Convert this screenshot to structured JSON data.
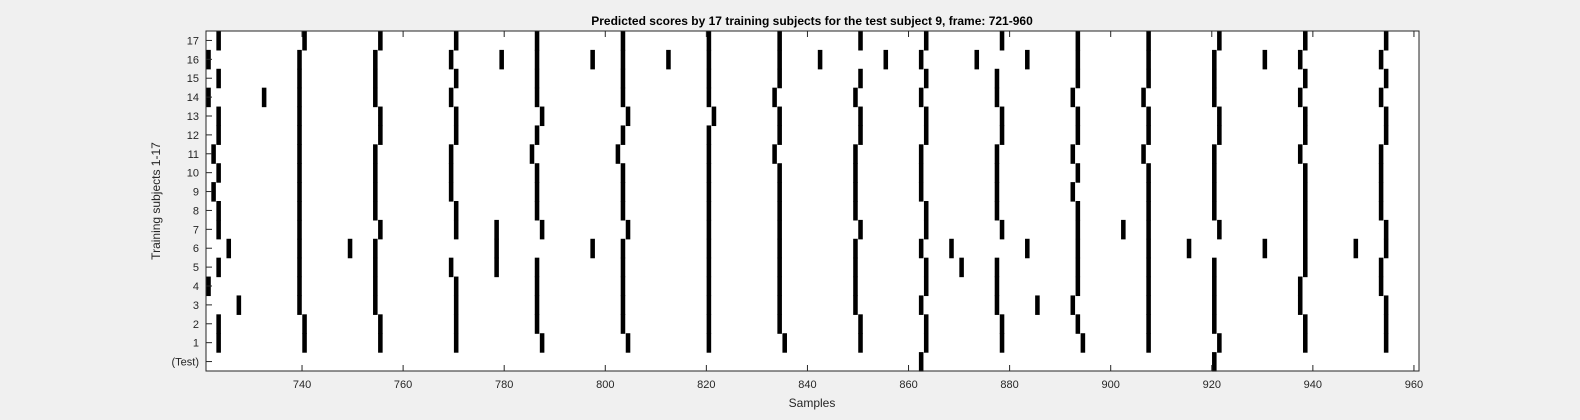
{
  "chart_data": {
    "type": "heatmap",
    "title": "Predicted scores by 17 training subjects for the test subject 9, frame: 721-960",
    "xlabel": "Samples",
    "ylabel": "Training subjects 1-17",
    "xlim": [
      721,
      960
    ],
    "xticks": [
      740,
      760,
      780,
      800,
      820,
      840,
      860,
      880,
      900,
      920,
      940,
      960
    ],
    "row_labels": [
      "(Test)",
      "1",
      "2",
      "3",
      "4",
      "5",
      "6",
      "7",
      "8",
      "9",
      "10",
      "11",
      "12",
      "13",
      "14",
      "15",
      "16",
      "17"
    ],
    "colors": {
      "background": "#ffffff",
      "mark": "#000000",
      "figure": "#f0f0f0"
    },
    "marks": {
      "(Test)": [
        862,
        920
      ],
      "1": [
        723,
        740,
        755,
        770,
        787,
        804,
        820,
        835,
        850,
        863,
        878,
        894,
        907,
        921,
        938,
        954
      ],
      "2": [
        723,
        740,
        755,
        770,
        786,
        803,
        820,
        834,
        850,
        863,
        878,
        893,
        907,
        920,
        938,
        954
      ],
      "3": [
        727,
        739,
        754,
        770,
        786,
        803,
        820,
        834,
        849,
        862,
        877,
        885,
        892,
        907,
        920,
        937,
        954
      ],
      "4": [
        721,
        739,
        754,
        770,
        786,
        803,
        820,
        834,
        849,
        863,
        877,
        893,
        907,
        920,
        937,
        953
      ],
      "5": [
        723,
        739,
        754,
        769,
        778,
        786,
        803,
        820,
        834,
        849,
        863,
        870,
        877,
        893,
        907,
        920,
        938,
        953
      ],
      "6": [
        725,
        739,
        749,
        754,
        778,
        797,
        803,
        820,
        834,
        849,
        862,
        868,
        883,
        893,
        907,
        915,
        930,
        938,
        948,
        954
      ],
      "7": [
        723,
        739,
        755,
        770,
        778,
        787,
        804,
        820,
        834,
        850,
        863,
        878,
        893,
        902,
        907,
        921,
        938,
        954
      ],
      "8": [
        723,
        739,
        754,
        770,
        786,
        803,
        820,
        834,
        849,
        863,
        877,
        893,
        907,
        920,
        938,
        953
      ],
      "9": [
        722,
        739,
        754,
        769,
        786,
        803,
        820,
        834,
        849,
        862,
        877,
        892,
        907,
        920,
        938,
        953
      ],
      "10": [
        723,
        739,
        754,
        769,
        786,
        803,
        820,
        834,
        849,
        862,
        877,
        893,
        907,
        920,
        938,
        953
      ],
      "11": [
        722,
        739,
        754,
        769,
        785,
        802,
        820,
        833,
        849,
        862,
        877,
        892,
        906,
        920,
        937,
        953
      ],
      "12": [
        723,
        739,
        755,
        770,
        786,
        803,
        820,
        834,
        850,
        863,
        878,
        893,
        907,
        921,
        938,
        954
      ],
      "13": [
        723,
        739,
        755,
        770,
        787,
        804,
        821,
        834,
        850,
        863,
        878,
        893,
        907,
        921,
        938,
        954
      ],
      "14": [
        721,
        732,
        739,
        754,
        769,
        786,
        803,
        820,
        833,
        849,
        862,
        877,
        892,
        906,
        920,
        937,
        953
      ],
      "15": [
        723,
        739,
        754,
        770,
        786,
        803,
        820,
        834,
        850,
        863,
        877,
        893,
        907,
        920,
        938,
        954
      ],
      "16": [
        721,
        739,
        754,
        769,
        779,
        786,
        797,
        803,
        812,
        820,
        834,
        842,
        855,
        862,
        873,
        883,
        893,
        907,
        920,
        930,
        937,
        953
      ],
      "17": [
        723,
        740,
        755,
        770,
        786,
        803,
        820,
        834,
        850,
        863,
        878,
        893,
        907,
        921,
        938,
        954
      ]
    }
  }
}
